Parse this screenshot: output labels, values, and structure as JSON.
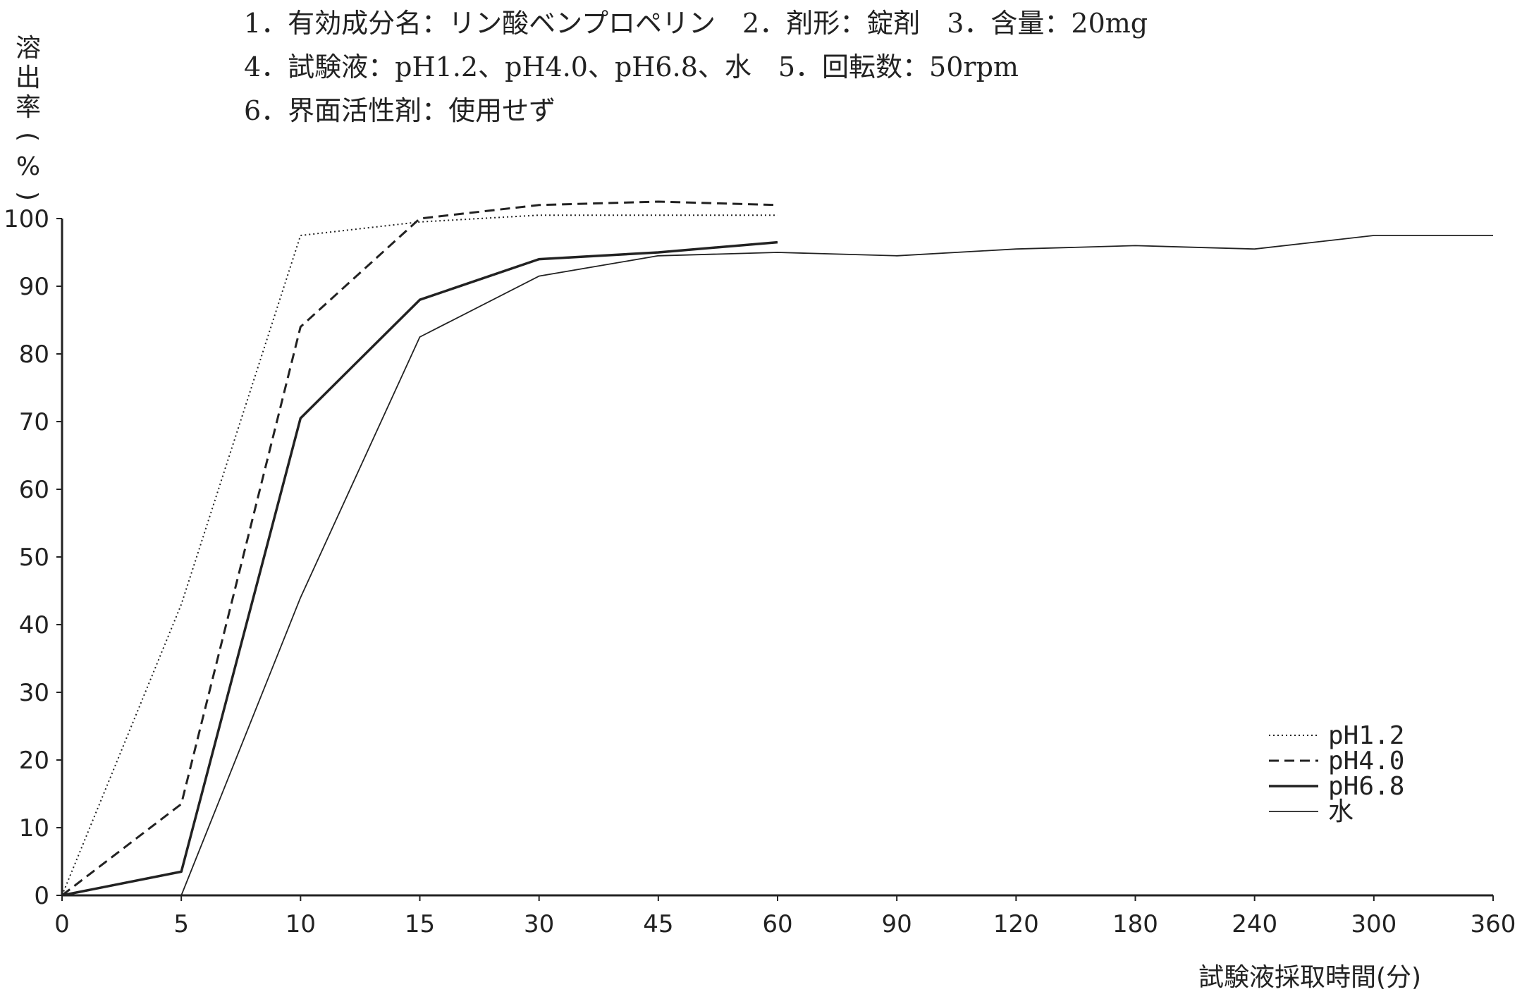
{
  "header": {
    "line1": "1．有効成分名：リン酸ベンプロペリン　2．剤形：錠剤　3．含量：20mg",
    "line2": "4．試験液：pH1.2、pH4.0、pH6.8、水　5．回転数：50rpm",
    "line3": "6．界面活性剤：使用せず"
  },
  "chart_data": {
    "type": "line",
    "ylabel": "溶出率(%)",
    "xlabel": "試験液採取時間(分)",
    "ylim": [
      0,
      100
    ],
    "yticks": [
      "0",
      "10",
      "20",
      "30",
      "40",
      "50",
      "60",
      "70",
      "80",
      "90",
      "100"
    ],
    "xticks": [
      "0",
      "5",
      "10",
      "15",
      "30",
      "45",
      "60",
      "90",
      "120",
      "180",
      "240",
      "300",
      "360"
    ],
    "x_scale": "categorical-equal-spacing",
    "grid": false,
    "legend_position": "bottom-right",
    "series": [
      {
        "name": "pH1.2",
        "style": "dotted",
        "color": "#222222",
        "x": [
          0,
          5,
          10,
          15,
          30,
          45,
          60
        ],
        "y": [
          0,
          43,
          97.5,
          99.5,
          100.5,
          100.5,
          100.5
        ]
      },
      {
        "name": "pH4.0",
        "style": "dashed",
        "color": "#222222",
        "x": [
          0,
          5,
          10,
          15,
          30,
          45,
          60
        ],
        "y": [
          0,
          13.5,
          84,
          100,
          102,
          102.5,
          102
        ]
      },
      {
        "name": "pH6.8",
        "style": "solid-thick",
        "color": "#222222",
        "x": [
          0,
          5,
          10,
          15,
          30,
          45,
          60
        ],
        "y": [
          0,
          3.5,
          70.5,
          88,
          94,
          95,
          96.5
        ]
      },
      {
        "name": "水",
        "style": "solid-thin",
        "color": "#222222",
        "x": [
          0,
          5,
          10,
          15,
          30,
          45,
          60,
          90,
          120,
          180,
          240,
          300,
          360
        ],
        "y": [
          0,
          0,
          44,
          82.5,
          91.5,
          94.5,
          95,
          94.5,
          95.5,
          96,
          95.5,
          97.5,
          97.5
        ]
      }
    ]
  }
}
